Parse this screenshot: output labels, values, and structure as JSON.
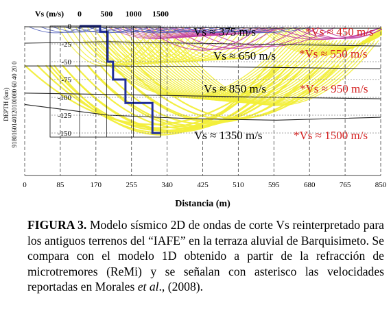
{
  "chart_data": {
    "type": "seismic-velocity-section",
    "x_label": "Distancia (m)",
    "x_ticks": [
      0,
      85,
      170,
      255,
      340,
      425,
      510,
      595,
      680,
      765,
      850
    ],
    "x_range": [
      0,
      850
    ],
    "y_label": "DEPTH (km)",
    "y_ticks": [
      0,
      -25,
      -50,
      -75,
      -100,
      -125,
      -150
    ],
    "y_range": [
      0,
      -150
    ],
    "y_edge_ticks": "9180160140120100080 60 40 20 0",
    "vs_axis_label": "Vs (m/s)",
    "vs_ticks": [
      0,
      500,
      1000,
      1500
    ],
    "remi_profile_1d": {
      "vs": [
        500,
        500,
        500,
        700,
        700,
        1200,
        1200,
        1500,
        1500
      ],
      "depth": [
        0,
        -12,
        -12,
        -50,
        -50,
        -105,
        -105,
        -135,
        -135
      ]
    },
    "remi_profile_1d_full": {
      "vs": [
        0,
        380,
        380,
        520,
        520,
        620,
        620,
        850,
        850,
        1350,
        1350,
        1500,
        1500
      ],
      "depth": [
        0,
        0,
        -8,
        -8,
        -50,
        -50,
        -75,
        -75,
        -108,
        -108,
        -150,
        -150,
        -150
      ]
    },
    "interfaces": [
      {
        "points": [
          [
            0,
            -1
          ],
          [
            200,
            -2
          ],
          [
            400,
            -2
          ],
          [
            600,
            -3
          ],
          [
            850,
            -3
          ]
        ]
      },
      {
        "points": [
          [
            0,
            -24
          ],
          [
            200,
            -22
          ],
          [
            400,
            -24
          ],
          [
            600,
            -26
          ],
          [
            850,
            -28
          ]
        ]
      },
      {
        "points": [
          [
            0,
            -56
          ],
          [
            200,
            -56
          ],
          [
            400,
            -57
          ],
          [
            600,
            -58
          ],
          [
            850,
            -60
          ]
        ]
      },
      {
        "points": [
          [
            0,
            -94
          ],
          [
            200,
            -96
          ],
          [
            400,
            -98
          ],
          [
            600,
            -100
          ],
          [
            850,
            -102
          ]
        ]
      },
      {
        "points": [
          [
            0,
            -110
          ],
          [
            200,
            -125
          ],
          [
            400,
            -130
          ],
          [
            600,
            -132
          ],
          [
            850,
            -128
          ]
        ]
      }
    ],
    "layer_labels": [
      {
        "text": "Vs ≈ 375 m/s"
      },
      {
        "text": "Vs ≈ 650 m/s"
      },
      {
        "text": "Vs ≈ 850 m/s"
      },
      {
        "text": "Vs ≈ 1350 m/s"
      }
    ],
    "reported_labels": [
      {
        "text": "*Vs ≈ 450 m/s"
      },
      {
        "text": "*Vs ≈ 550 m/s"
      },
      {
        "text": "*Vs ≈ 950 m/s"
      },
      {
        "text": "*Vs ≈ 1500 m/s"
      }
    ],
    "colors": {
      "ray_yellow": "#f2ee3a",
      "ray_magenta": "#c03aa0",
      "ray_blue": "#4a5ab8",
      "profile_blue": "#1f2d9a",
      "reported_red": "#d42020"
    }
  },
  "caption": {
    "label": "FIGURA 3.",
    "text_before_italic": " Modelo sísmico 2D de ondas de corte Vs reinterpretado para los antiguos terrenos del “IAFE” en la terraza aluvial de Barquisimeto. Se compara con el modelo 1D obtenido a partir de la refracción de microtremores (ReMi) y se señalan con asterisco las velocidades reportadas en Morales ",
    "italic": "et al",
    "text_after_italic": "., (2008)."
  }
}
